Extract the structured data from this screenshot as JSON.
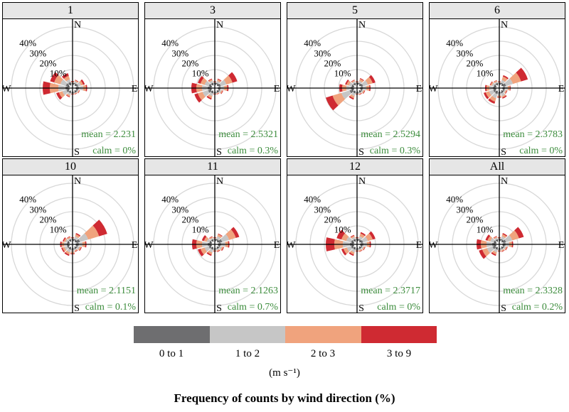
{
  "chart_data": {
    "type": "polar-bar",
    "title": "",
    "caption": "Frequency of counts by wind direction (%)",
    "unit_label": "(m s⁻¹)",
    "ring_labels": [
      "10%",
      "20%",
      "30%",
      "40%"
    ],
    "ring_values": [
      10,
      20,
      30,
      40
    ],
    "compass_labels": {
      "north": "N",
      "east": "E",
      "south": "S",
      "west": "W"
    },
    "speed_bins": [
      "0 to 1",
      "1 to 2",
      "2 to 3",
      "3 to 9"
    ],
    "colors": [
      "#6e6e70",
      "#c6c6c6",
      "#f0a37d",
      "#cf2a32"
    ],
    "stat_color": "#3c8c3c",
    "directions_deg": [
      0,
      30,
      60,
      90,
      120,
      150,
      180,
      210,
      240,
      270,
      300,
      330
    ],
    "panels": [
      {
        "label": "1",
        "mean": "mean = 2.231",
        "calm": "calm = 0%",
        "sectors": [
          [
            0.5,
            0.5,
            0.5,
            0.5
          ],
          [
            0.8,
            1.2,
            0.8,
            0.4
          ],
          [
            1.2,
            2.0,
            1.6,
            1.2
          ],
          [
            1.5,
            3.0,
            2.0,
            0.8
          ],
          [
            0.8,
            0.8,
            0.5,
            0.3
          ],
          [
            0.5,
            0.5,
            0.5,
            0.3
          ],
          [
            0.5,
            0.5,
            0.3,
            0.3
          ],
          [
            0.8,
            1.5,
            1.0,
            0.5
          ],
          [
            1.5,
            3.0,
            2.5,
            2.0
          ],
          [
            2.0,
            5.0,
            6.0,
            5.0
          ],
          [
            2.0,
            4.0,
            4.5,
            3.0
          ],
          [
            1.5,
            2.0,
            2.5,
            2.0
          ]
        ]
      },
      {
        "label": "3",
        "mean": "mean = 2.5321",
        "calm": "calm = 0.3%",
        "sectors": [
          [
            0.5,
            0.5,
            0.5,
            0.3
          ],
          [
            0.8,
            1.5,
            1.2,
            0.5
          ],
          [
            1.5,
            4.0,
            4.5,
            3.5
          ],
          [
            1.2,
            2.5,
            2.0,
            1.0
          ],
          [
            0.8,
            1.2,
            0.8,
            0.4
          ],
          [
            0.5,
            0.5,
            0.5,
            0.3
          ],
          [
            0.5,
            0.5,
            0.3,
            0.3
          ],
          [
            1.0,
            2.0,
            1.5,
            1.0
          ],
          [
            2.0,
            4.0,
            3.5,
            2.5
          ],
          [
            2.0,
            4.0,
            4.0,
            3.5
          ],
          [
            1.5,
            3.0,
            3.0,
            2.0
          ],
          [
            1.0,
            1.5,
            1.0,
            0.5
          ]
        ]
      },
      {
        "label": "5",
        "mean": "mean = 2.5294",
        "calm": "calm = 0.3%",
        "sectors": [
          [
            0.5,
            0.5,
            0.5,
            0.3
          ],
          [
            0.8,
            1.5,
            1.5,
            0.5
          ],
          [
            1.5,
            3.5,
            3.5,
            2.0
          ],
          [
            1.2,
            2.5,
            2.0,
            0.8
          ],
          [
            0.8,
            1.0,
            0.8,
            0.4
          ],
          [
            0.5,
            0.8,
            0.5,
            0.3
          ],
          [
            0.5,
            0.5,
            0.3,
            0.3
          ],
          [
            1.0,
            2.0,
            1.5,
            1.0
          ],
          [
            2.5,
            6.0,
            6.5,
            5.0
          ],
          [
            1.5,
            3.0,
            3.0,
            2.0
          ],
          [
            1.0,
            2.0,
            1.8,
            1.0
          ],
          [
            0.8,
            1.2,
            0.8,
            0.4
          ]
        ]
      },
      {
        "label": "6",
        "mean": "mean = 2.3783",
        "calm": "calm = 0%",
        "sectors": [
          [
            0.5,
            0.5,
            0.5,
            0.3
          ],
          [
            1.0,
            2.0,
            2.5,
            1.0
          ],
          [
            2.0,
            5.0,
            6.0,
            5.0
          ],
          [
            1.0,
            2.0,
            1.5,
            0.5
          ],
          [
            0.8,
            1.0,
            0.8,
            0.4
          ],
          [
            1.0,
            2.0,
            1.0,
            0.8
          ],
          [
            0.8,
            1.5,
            1.0,
            0.5
          ],
          [
            1.5,
            3.0,
            2.5,
            1.5
          ],
          [
            1.5,
            3.0,
            2.5,
            1.5
          ],
          [
            1.5,
            2.5,
            2.0,
            1.0
          ],
          [
            1.0,
            1.5,
            1.0,
            0.5
          ],
          [
            0.8,
            1.0,
            0.8,
            0.3
          ]
        ]
      },
      {
        "label": "10",
        "mean": "mean = 2.1151",
        "calm": "calm = 0.1%",
        "sectors": [
          [
            0.5,
            0.8,
            0.5,
            0.3
          ],
          [
            1.0,
            2.0,
            1.5,
            0.8
          ],
          [
            2.5,
            6.0,
            8.0,
            6.0
          ],
          [
            1.5,
            2.5,
            2.0,
            0.8
          ],
          [
            0.8,
            1.5,
            1.0,
            0.5
          ],
          [
            0.5,
            1.0,
            0.8,
            0.3
          ],
          [
            0.8,
            1.5,
            1.2,
            0.5
          ],
          [
            1.0,
            2.0,
            1.5,
            1.0
          ],
          [
            1.0,
            2.0,
            1.5,
            0.8
          ],
          [
            1.0,
            2.0,
            1.8,
            1.0
          ],
          [
            0.8,
            1.5,
            1.2,
            0.8
          ],
          [
            0.8,
            1.0,
            0.8,
            0.4
          ]
        ]
      },
      {
        "label": "11",
        "mean": "mean = 2.1263",
        "calm": "calm = 0.7%",
        "sectors": [
          [
            0.5,
            0.8,
            0.5,
            0.3
          ],
          [
            1.0,
            2.0,
            1.5,
            0.5
          ],
          [
            2.5,
            5.0,
            5.0,
            2.5
          ],
          [
            1.5,
            3.0,
            2.0,
            0.8
          ],
          [
            0.8,
            1.5,
            1.0,
            0.5
          ],
          [
            0.5,
            1.0,
            0.8,
            0.4
          ],
          [
            0.5,
            0.8,
            0.5,
            0.3
          ],
          [
            1.0,
            2.0,
            1.5,
            1.0
          ],
          [
            1.5,
            3.0,
            3.0,
            2.0
          ],
          [
            2.0,
            4.0,
            4.0,
            3.0
          ],
          [
            1.0,
            2.0,
            2.0,
            1.5
          ],
          [
            0.8,
            1.0,
            0.8,
            0.4
          ]
        ]
      },
      {
        "label": "12",
        "mean": "mean = 2.3717",
        "calm": "calm = 0%",
        "sectors": [
          [
            0.5,
            0.8,
            0.5,
            0.3
          ],
          [
            1.0,
            2.0,
            2.0,
            1.0
          ],
          [
            1.5,
            3.5,
            3.5,
            2.0
          ],
          [
            1.5,
            2.5,
            2.0,
            0.8
          ],
          [
            0.8,
            1.2,
            0.8,
            0.4
          ],
          [
            0.5,
            1.0,
            0.8,
            0.3
          ],
          [
            0.5,
            0.8,
            0.5,
            0.3
          ],
          [
            1.0,
            2.0,
            1.5,
            1.0
          ],
          [
            1.5,
            3.0,
            2.5,
            1.5
          ],
          [
            2.0,
            5.0,
            6.0,
            6.0
          ],
          [
            1.5,
            3.5,
            3.5,
            3.5
          ],
          [
            1.0,
            1.5,
            1.0,
            0.5
          ]
        ]
      },
      {
        "label": "All",
        "mean": "mean = 2.3328",
        "calm": "calm = 0.2%",
        "sectors": [
          [
            0.5,
            0.8,
            0.5,
            0.3
          ],
          [
            1.0,
            2.0,
            1.5,
            0.8
          ],
          [
            2.0,
            4.5,
            5.0,
            3.5
          ],
          [
            1.5,
            2.5,
            2.0,
            0.8
          ],
          [
            0.8,
            1.2,
            0.8,
            0.4
          ],
          [
            0.5,
            1.0,
            0.8,
            0.3
          ],
          [
            0.5,
            0.8,
            0.5,
            0.3
          ],
          [
            1.0,
            2.0,
            1.5,
            1.0
          ],
          [
            2.0,
            4.0,
            3.5,
            2.5
          ],
          [
            2.0,
            4.0,
            4.0,
            3.0
          ],
          [
            1.2,
            2.5,
            2.0,
            1.5
          ],
          [
            0.8,
            1.2,
            0.8,
            0.4
          ]
        ]
      }
    ]
  }
}
